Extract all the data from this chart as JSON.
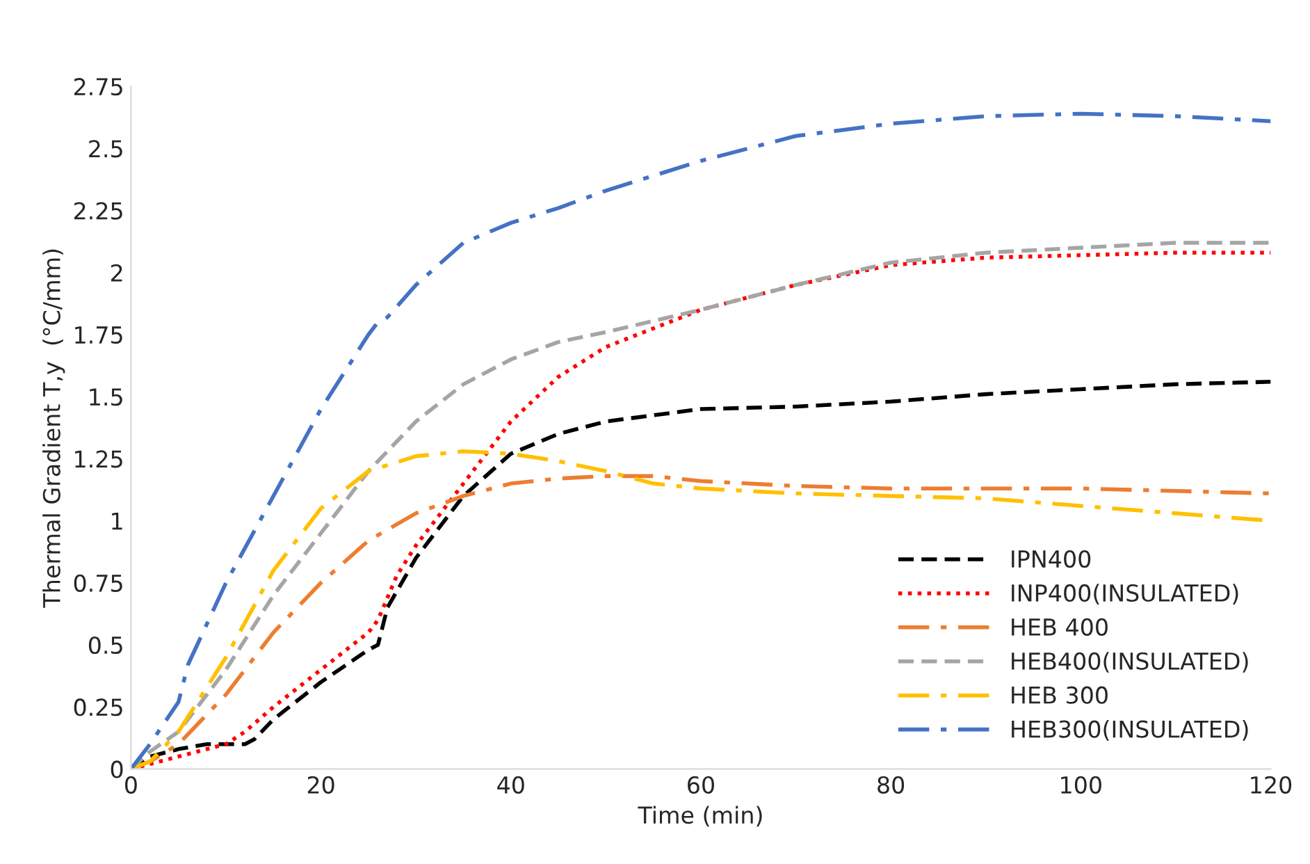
{
  "chart_data": {
    "type": "line",
    "xlabel": "Time (min)",
    "ylabel": "Thermal Gradient T,y  (°C/mm)",
    "xlim": [
      0,
      120
    ],
    "xticks": [
      0,
      20,
      40,
      60,
      80,
      100,
      120
    ],
    "ylim": [
      0,
      2.75
    ],
    "yticks": [
      0,
      0.25,
      0.5,
      0.75,
      1,
      1.25,
      1.5,
      1.75,
      2,
      2.25,
      2.5,
      2.75
    ],
    "grid": false,
    "legend": "right",
    "marker": "none",
    "series": [
      {
        "name": "IPN400",
        "color": "#000000",
        "line_style": "dashed",
        "x": [
          0,
          2,
          5,
          8,
          12,
          13,
          15,
          20,
          25,
          26,
          27,
          30,
          35,
          40,
          45,
          50,
          60,
          70,
          80,
          90,
          100,
          110,
          120
        ],
        "values": [
          0,
          0.05,
          0.08,
          0.1,
          0.1,
          0.12,
          0.2,
          0.35,
          0.48,
          0.5,
          0.65,
          0.85,
          1.1,
          1.27,
          1.35,
          1.4,
          1.45,
          1.46,
          1.48,
          1.51,
          1.53,
          1.55,
          1.56
        ]
      },
      {
        "name": "INP400(INSULATED)",
        "color": "#ff0000",
        "line_style": "dotted",
        "x": [
          0,
          5,
          10,
          12,
          15,
          20,
          25,
          26,
          28,
          30,
          35,
          40,
          45,
          50,
          60,
          70,
          80,
          90,
          100,
          110,
          120
        ],
        "values": [
          0,
          0.05,
          0.1,
          0.15,
          0.25,
          0.4,
          0.55,
          0.6,
          0.78,
          0.9,
          1.15,
          1.4,
          1.58,
          1.7,
          1.85,
          1.95,
          2.03,
          2.06,
          2.07,
          2.08,
          2.08
        ]
      },
      {
        "name": "HEB 400",
        "color": "#ed7d31",
        "line_style": "dashdot",
        "x": [
          0,
          2,
          5,
          10,
          15,
          20,
          25,
          30,
          35,
          40,
          45,
          50,
          55,
          60,
          70,
          80,
          90,
          100,
          110,
          120
        ],
        "values": [
          0,
          0.03,
          0.1,
          0.3,
          0.55,
          0.75,
          0.92,
          1.03,
          1.1,
          1.15,
          1.17,
          1.18,
          1.18,
          1.16,
          1.14,
          1.13,
          1.13,
          1.13,
          1.12,
          1.11
        ]
      },
      {
        "name": "HEB400(INSULATED)",
        "color": "#a5a5a5",
        "line_style": "dashed",
        "x": [
          0,
          2,
          5,
          10,
          15,
          20,
          25,
          30,
          35,
          40,
          45,
          50,
          60,
          70,
          80,
          90,
          100,
          110,
          120
        ],
        "values": [
          0,
          0.07,
          0.15,
          0.4,
          0.7,
          0.95,
          1.2,
          1.4,
          1.55,
          1.65,
          1.72,
          1.76,
          1.85,
          1.95,
          2.04,
          2.08,
          2.1,
          2.12,
          2.12
        ]
      },
      {
        "name": "HEB 300",
        "color": "#ffc000",
        "line_style": "dashdot",
        "x": [
          0,
          2,
          5,
          10,
          15,
          20,
          25,
          30,
          35,
          40,
          45,
          50,
          55,
          60,
          70,
          80,
          90,
          100,
          110,
          120
        ],
        "values": [
          0,
          0.03,
          0.15,
          0.45,
          0.8,
          1.05,
          1.2,
          1.26,
          1.28,
          1.27,
          1.24,
          1.2,
          1.15,
          1.13,
          1.11,
          1.1,
          1.09,
          1.06,
          1.03,
          1.0
        ]
      },
      {
        "name": "HEB300(INSULATED)",
        "color": "#4472c4",
        "line_style": "dashdot",
        "x": [
          0,
          2,
          5,
          6,
          10,
          15,
          20,
          25,
          26,
          27,
          30,
          35,
          40,
          45,
          50,
          60,
          70,
          80,
          90,
          100,
          110,
          120
        ],
        "values": [
          0,
          0.1,
          0.27,
          0.42,
          0.75,
          1.1,
          1.45,
          1.75,
          1.8,
          1.82,
          1.95,
          2.12,
          2.2,
          2.26,
          2.33,
          2.45,
          2.55,
          2.6,
          2.63,
          2.64,
          2.63,
          2.61
        ]
      }
    ]
  }
}
